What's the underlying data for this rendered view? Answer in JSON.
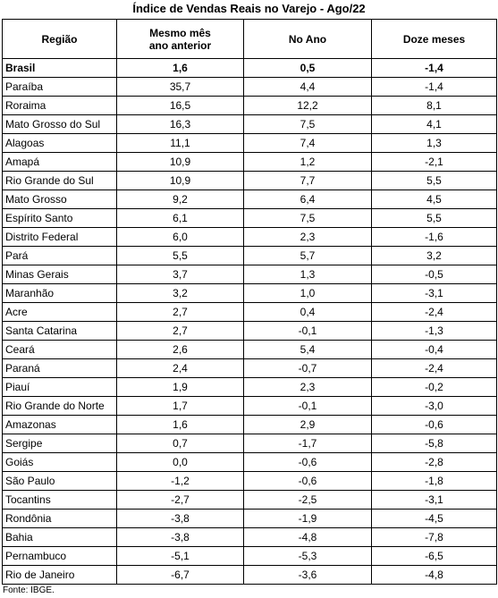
{
  "title": "Índice de Vendas Reais no Varejo - Ago/22",
  "table": {
    "header": [
      "Região",
      "Mesmo mês ano anterior",
      "No Ano",
      "Doze meses"
    ],
    "rows": [
      [
        "Brasil",
        "1,6",
        "0,5",
        "-1,4"
      ],
      [
        "Paraíba",
        "35,7",
        "4,4",
        "-1,4"
      ],
      [
        "Roraima",
        "16,5",
        "12,2",
        "8,1"
      ],
      [
        "Mato Grosso do Sul",
        "16,3",
        "7,5",
        "4,1"
      ],
      [
        "Alagoas",
        "11,1",
        "7,4",
        "1,3"
      ],
      [
        "Amapá",
        "10,9",
        "1,2",
        "-2,1"
      ],
      [
        "Rio Grande do Sul",
        "10,9",
        "7,7",
        "5,5"
      ],
      [
        "Mato Grosso",
        "9,2",
        "6,4",
        "4,5"
      ],
      [
        "Espírito Santo",
        "6,1",
        "7,5",
        "5,5"
      ],
      [
        "Distrito Federal",
        "6,0",
        "2,3",
        "-1,6"
      ],
      [
        "Pará",
        "5,5",
        "5,7",
        "3,2"
      ],
      [
        "Minas Gerais",
        "3,7",
        "1,3",
        "-0,5"
      ],
      [
        "Maranhão",
        "3,2",
        "1,0",
        "-3,1"
      ],
      [
        "Acre",
        "2,7",
        "0,4",
        "-2,4"
      ],
      [
        "Santa Catarina",
        "2,7",
        "-0,1",
        "-1,3"
      ],
      [
        "Ceará",
        "2,6",
        "5,4",
        "-0,4"
      ],
      [
        "Paraná",
        "2,4",
        "-0,7",
        "-2,4"
      ],
      [
        "Piauí",
        "1,9",
        "2,3",
        "-0,2"
      ],
      [
        "Rio Grande do Norte",
        "1,7",
        "-0,1",
        "-3,0"
      ],
      [
        "Amazonas",
        "1,6",
        "2,9",
        "-0,6"
      ],
      [
        "Sergipe",
        "0,7",
        "-1,7",
        "-5,8"
      ],
      [
        "Goiás",
        "0,0",
        "-0,6",
        "-2,8"
      ],
      [
        "São Paulo",
        "-1,2",
        "-0,6",
        "-1,8"
      ],
      [
        "Tocantins",
        "-2,7",
        "-2,5",
        "-3,1"
      ],
      [
        "Rondônia",
        "-3,8",
        "-1,9",
        "-4,5"
      ],
      [
        "Bahia",
        "-3,8",
        "-4,8",
        "-7,8"
      ],
      [
        "Pernambuco",
        "-5,1",
        "-5,3",
        "-6,5"
      ],
      [
        "Rio de Janeiro",
        "-6,7",
        "-3,6",
        "-4,8"
      ]
    ]
  },
  "source": "Fonte: IBGE."
}
